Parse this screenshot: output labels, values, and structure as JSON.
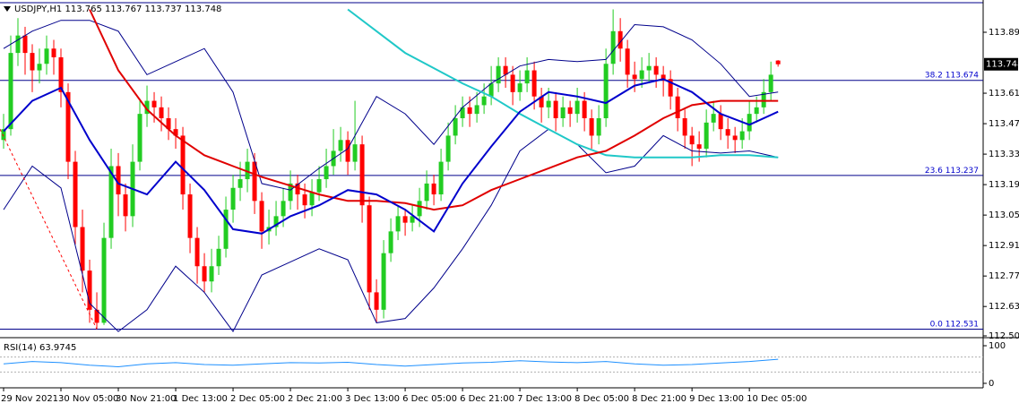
{
  "chart_data": [
    {
      "type": "candlestick",
      "title": "USDJPY,H1  113.765 113.767 113.737 113.748",
      "xlim": [
        -0.5,
        136.6
      ],
      "xticks": [
        {
          "value": 0,
          "label": "29 Nov 2021"
        },
        {
          "value": 8,
          "label": "30 Nov 05:00"
        },
        {
          "value": 16,
          "label": "30 Nov 21:00"
        },
        {
          "value": 24,
          "label": "1 Dec 13:00"
        },
        {
          "value": 32,
          "label": "2 Dec 05:00"
        },
        {
          "value": 40,
          "label": "2 Dec 21:00"
        },
        {
          "value": 48,
          "label": "3 Dec 13:00"
        },
        {
          "value": 56,
          "label": "6 Dec 05:00"
        },
        {
          "value": 64,
          "label": "6 Dec 21:00"
        },
        {
          "value": 72,
          "label": "7 Dec 13:00"
        },
        {
          "value": 80,
          "label": "8 Dec 05:00"
        },
        {
          "value": 88,
          "label": "8 Dec 21:00"
        },
        {
          "value": 96,
          "label": "9 Dec 13:00"
        },
        {
          "value": 104,
          "label": "10 Dec 05:00"
        }
      ],
      "ylim": [
        112.5,
        114.035
      ],
      "yticks": [
        113.895,
        113.615,
        113.475,
        113.335,
        113.195,
        113.055,
        112.915,
        112.775,
        112.635,
        {
          "value": 112.5,
          "label": "112.500"
        }
      ],
      "up_color": "#22cc22",
      "down_color": "#ff0000",
      "open": [
        113.4,
        113.45,
        113.8,
        113.88,
        113.8,
        113.72,
        113.75,
        113.82,
        113.78,
        113.62,
        113.3,
        113.0,
        112.8,
        112.62,
        112.56,
        112.95,
        113.28,
        113.15,
        113.05,
        113.3,
        113.52,
        113.58,
        113.55,
        113.5,
        113.45,
        113.42,
        113.15,
        112.95,
        112.82,
        112.75,
        112.82,
        112.9,
        113.08,
        113.18,
        113.22,
        113.3,
        113.12,
        112.98,
        113.0,
        113.05,
        113.12,
        113.2,
        113.15,
        113.1,
        113.16,
        113.22,
        113.28,
        113.35,
        113.4,
        113.3,
        113.38,
        113.1,
        112.7,
        112.62,
        112.88,
        112.98,
        113.05,
        113.02,
        113.05,
        113.12,
        113.2,
        113.15,
        113.3,
        113.42,
        113.5,
        113.55,
        113.52,
        113.56,
        113.6,
        113.66,
        113.74,
        113.7,
        113.62,
        113.66,
        113.72,
        113.6,
        113.55,
        113.58,
        113.5,
        113.55,
        113.52,
        113.58,
        113.5,
        113.42,
        113.5,
        113.75,
        113.9,
        113.82,
        113.7,
        113.68,
        113.72,
        113.74,
        113.7,
        113.68,
        113.6,
        113.5,
        113.42,
        113.38,
        113.36,
        113.48,
        113.52,
        113.45,
        113.42,
        113.4,
        113.44,
        113.52,
        113.55,
        113.62,
        113.765
      ],
      "high": [
        113.52,
        113.88,
        113.96,
        113.92,
        113.84,
        113.82,
        113.88,
        113.86,
        113.82,
        113.66,
        113.35,
        113.08,
        112.85,
        112.7,
        113.02,
        113.36,
        113.34,
        113.2,
        113.38,
        113.58,
        113.65,
        113.62,
        113.6,
        113.55,
        113.5,
        113.46,
        113.2,
        113.0,
        112.88,
        112.9,
        112.96,
        113.14,
        113.24,
        113.3,
        113.36,
        113.34,
        113.16,
        113.08,
        113.12,
        113.18,
        113.26,
        113.24,
        113.2,
        113.22,
        113.28,
        113.36,
        113.45,
        113.46,
        113.44,
        113.58,
        113.42,
        113.14,
        112.76,
        112.94,
        113.04,
        113.1,
        113.08,
        113.1,
        113.18,
        113.26,
        113.24,
        113.36,
        113.48,
        113.56,
        113.6,
        113.6,
        113.62,
        113.66,
        113.74,
        113.78,
        113.78,
        113.74,
        113.72,
        113.78,
        113.76,
        113.64,
        113.64,
        113.62,
        113.6,
        113.58,
        113.64,
        113.62,
        113.54,
        113.56,
        113.82,
        114.0,
        113.96,
        113.86,
        113.76,
        113.78,
        113.8,
        113.78,
        113.74,
        113.72,
        113.64,
        113.54,
        113.46,
        113.44,
        113.54,
        113.58,
        113.56,
        113.5,
        113.46,
        113.5,
        113.58,
        113.6,
        113.68,
        113.76,
        113.767
      ],
      "low": [
        113.36,
        113.42,
        113.74,
        113.7,
        113.62,
        113.66,
        113.7,
        113.7,
        113.55,
        113.22,
        112.92,
        112.7,
        112.56,
        112.531,
        112.55,
        112.9,
        113.05,
        112.98,
        113.0,
        113.26,
        113.46,
        113.48,
        113.44,
        113.4,
        113.36,
        113.08,
        112.88,
        112.74,
        112.7,
        112.7,
        112.78,
        112.86,
        113.02,
        113.12,
        113.16,
        113.06,
        112.9,
        112.92,
        112.96,
        113.0,
        113.08,
        113.08,
        113.04,
        113.05,
        113.12,
        113.18,
        113.24,
        113.3,
        113.24,
        113.26,
        113.02,
        112.62,
        112.56,
        112.58,
        112.84,
        112.94,
        112.96,
        112.98,
        113.0,
        113.08,
        113.1,
        113.12,
        113.26,
        113.38,
        113.46,
        113.46,
        113.48,
        113.52,
        113.56,
        113.62,
        113.64,
        113.56,
        113.58,
        113.62,
        113.54,
        113.48,
        113.5,
        113.44,
        113.46,
        113.46,
        113.48,
        113.44,
        113.36,
        113.38,
        113.46,
        113.7,
        113.76,
        113.64,
        113.62,
        113.64,
        113.66,
        113.64,
        113.6,
        113.54,
        113.44,
        113.36,
        113.28,
        113.3,
        113.32,
        113.44,
        113.4,
        113.36,
        113.34,
        113.36,
        113.4,
        113.48,
        113.52,
        113.58,
        113.737
      ],
      "close": [
        113.45,
        113.8,
        113.88,
        113.8,
        113.72,
        113.75,
        113.82,
        113.78,
        113.62,
        113.3,
        113.0,
        112.8,
        112.62,
        112.56,
        112.95,
        113.28,
        113.15,
        113.05,
        113.3,
        113.52,
        113.58,
        113.55,
        113.5,
        113.45,
        113.42,
        113.15,
        112.95,
        112.82,
        112.75,
        112.82,
        112.9,
        113.08,
        113.18,
        113.22,
        113.3,
        113.12,
        112.98,
        113.0,
        113.05,
        113.12,
        113.2,
        113.15,
        113.1,
        113.16,
        113.22,
        113.28,
        113.35,
        113.4,
        113.3,
        113.38,
        113.1,
        112.7,
        112.62,
        112.88,
        112.98,
        113.05,
        113.02,
        113.05,
        113.12,
        113.2,
        113.15,
        113.3,
        113.42,
        113.5,
        113.55,
        113.52,
        113.56,
        113.6,
        113.66,
        113.74,
        113.7,
        113.62,
        113.66,
        113.72,
        113.6,
        113.55,
        113.58,
        113.5,
        113.55,
        113.52,
        113.58,
        113.5,
        113.42,
        113.5,
        113.75,
        113.9,
        113.82,
        113.7,
        113.68,
        113.72,
        113.74,
        113.7,
        113.68,
        113.6,
        113.5,
        113.42,
        113.38,
        113.36,
        113.48,
        113.52,
        113.45,
        113.42,
        113.4,
        113.44,
        113.52,
        113.55,
        113.62,
        113.7,
        113.748
      ],
      "line_x": [
        0,
        4,
        8,
        12,
        16,
        20,
        24,
        28,
        32,
        36,
        40,
        44,
        48,
        52,
        56,
        60,
        64,
        68,
        72,
        76,
        80,
        84,
        88,
        92,
        96,
        100,
        104,
        108
      ],
      "overlays": [
        {
          "color": "#00008b",
          "width": 1,
          "values": [
            113.82,
            113.9,
            113.95,
            113.95,
            113.9,
            113.7,
            113.76,
            113.82,
            113.62,
            113.2,
            113.17,
            113.27,
            113.36,
            113.6,
            113.52,
            113.38,
            113.55,
            113.66,
            113.74,
            113.77,
            113.76,
            113.77,
            113.93,
            113.92,
            113.86,
            113.75,
            113.6,
            113.62
          ]
        },
        {
          "color": "#00008b",
          "width": 1,
          "values": [
            113.08,
            113.28,
            113.18,
            112.65,
            112.52,
            112.62,
            112.82,
            112.7,
            112.52,
            112.78,
            112.84,
            112.9,
            112.85,
            112.56,
            112.58,
            112.72,
            112.9,
            113.1,
            113.35,
            113.45,
            113.38,
            113.25,
            113.28,
            113.42,
            113.35,
            113.34,
            113.35,
            113.32
          ]
        },
        {
          "color": "#20c8c8",
          "width": 2,
          "values": [
            null,
            null,
            null,
            null,
            null,
            null,
            null,
            null,
            null,
            null,
            null,
            null,
            114.0,
            113.9,
            113.8,
            113.73,
            113.66,
            113.6,
            113.52,
            113.45,
            113.38,
            113.33,
            113.32,
            113.32,
            113.32,
            113.33,
            113.33,
            113.32
          ]
        },
        {
          "color": "#e00000",
          "width": 2,
          "values": [
            null,
            null,
            null,
            114.0,
            113.72,
            113.54,
            113.42,
            113.33,
            113.28,
            113.23,
            113.19,
            113.15,
            113.12,
            113.12,
            113.11,
            113.08,
            113.1,
            113.17,
            113.22,
            113.27,
            113.32,
            113.35,
            113.42,
            113.5,
            113.56,
            113.58,
            113.58,
            113.58
          ]
        },
        {
          "color": "#0000cc",
          "width": 2,
          "values": [
            113.44,
            113.58,
            113.64,
            113.4,
            113.2,
            113.15,
            113.3,
            113.17,
            112.99,
            112.97,
            113.05,
            113.1,
            113.17,
            113.15,
            113.08,
            112.98,
            113.2,
            113.37,
            113.53,
            113.62,
            113.6,
            113.57,
            113.65,
            113.68,
            113.62,
            113.52,
            113.47,
            113.53
          ]
        }
      ],
      "trendline": {
        "x": [
          -0.5,
          13
        ],
        "values": [
          113.45,
          112.531
        ],
        "color": "#ff0000"
      },
      "levels": [
        {
          "label": "38.2",
          "value": 113.674
        },
        {
          "label": "23.6",
          "value": 113.237
        },
        {
          "label": "0.0",
          "value": 112.531
        }
      ],
      "level_color": "#00008b",
      "last_price": 113.748
    },
    {
      "type": "line",
      "title": "RSI(14) 63.9745",
      "xlim": [
        -0.5,
        136.6
      ],
      "ylim": [
        0,
        100
      ],
      "yticks": [
        100,
        0
      ],
      "levels": [
        70,
        30
      ],
      "color": "#1e90ff",
      "x": [
        0,
        4,
        8,
        12,
        16,
        20,
        24,
        28,
        32,
        36,
        40,
        44,
        48,
        52,
        56,
        60,
        64,
        68,
        72,
        76,
        80,
        84,
        88,
        92,
        96,
        100,
        104,
        108
      ],
      "values": [
        52,
        58,
        55,
        48,
        44,
        52,
        55,
        50,
        48,
        52,
        55,
        54,
        56,
        50,
        46,
        50,
        54,
        56,
        60,
        57,
        55,
        58,
        52,
        48,
        50,
        54,
        58,
        63.9745
      ]
    }
  ]
}
